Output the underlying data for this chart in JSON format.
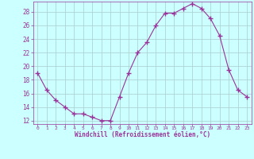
{
  "x": [
    0,
    1,
    2,
    3,
    4,
    5,
    6,
    7,
    8,
    9,
    10,
    11,
    12,
    13,
    14,
    15,
    16,
    17,
    18,
    19,
    20,
    21,
    22,
    23
  ],
  "y": [
    19.0,
    16.5,
    15.0,
    14.0,
    13.0,
    13.0,
    12.5,
    12.0,
    12.0,
    15.5,
    19.0,
    22.0,
    23.5,
    26.0,
    27.8,
    27.8,
    28.5,
    29.2,
    28.5,
    27.0,
    24.5,
    19.5,
    16.5,
    15.5
  ],
  "line_color": "#993399",
  "marker": "+",
  "marker_size": 4,
  "bg_color": "#ccffff",
  "grid_color": "#aacccc",
  "xlabel": "Windchill (Refroidissement éolien,°C)",
  "xlabel_color": "#993399",
  "tick_color": "#993399",
  "ylim": [
    11.5,
    29.5
  ],
  "xlim": [
    -0.5,
    23.5
  ],
  "yticks": [
    12,
    14,
    16,
    18,
    20,
    22,
    24,
    26,
    28
  ],
  "xticks": [
    0,
    1,
    2,
    3,
    4,
    5,
    6,
    7,
    8,
    9,
    10,
    11,
    12,
    13,
    14,
    15,
    16,
    17,
    18,
    19,
    20,
    21,
    22,
    23
  ]
}
